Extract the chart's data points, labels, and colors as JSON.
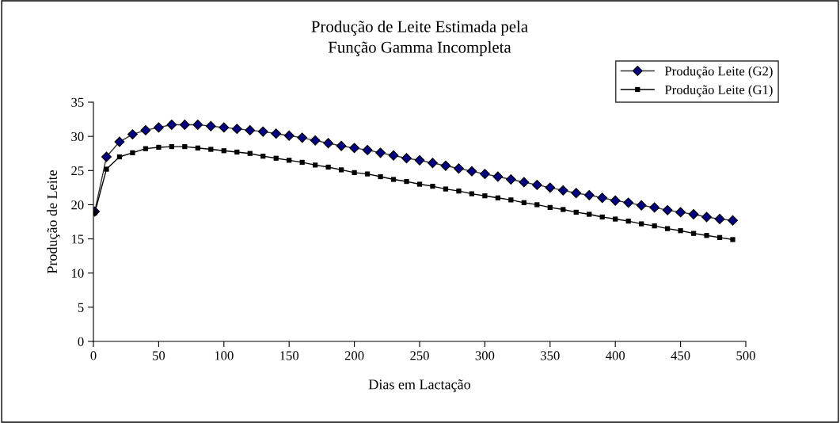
{
  "chart_data": {
    "type": "line",
    "title": "Produção de Leite Estimada pela\nFunção Gamma Incompleta",
    "xlabel": "Dias em Lactação",
    "ylabel": "Produção de Leite",
    "x": [
      1,
      10,
      20,
      30,
      40,
      50,
      60,
      70,
      80,
      90,
      100,
      110,
      120,
      130,
      140,
      150,
      160,
      170,
      180,
      190,
      200,
      210,
      220,
      230,
      240,
      250,
      260,
      270,
      280,
      290,
      300,
      310,
      320,
      330,
      340,
      350,
      360,
      370,
      380,
      390,
      400,
      410,
      420,
      430,
      440,
      450,
      460,
      470,
      480,
      490
    ],
    "series": [
      {
        "name": "Produção Leite (G2)",
        "color": "#000080",
        "marker": "diamond",
        "values": [
          19.0,
          27.0,
          29.2,
          30.3,
          30.9,
          31.3,
          31.7,
          31.7,
          31.7,
          31.5,
          31.3,
          31.1,
          30.9,
          30.7,
          30.4,
          30.1,
          29.8,
          29.4,
          29.0,
          28.6,
          28.3,
          28.0,
          27.6,
          27.2,
          26.8,
          26.5,
          26.1,
          25.7,
          25.3,
          24.9,
          24.5,
          24.1,
          23.7,
          23.3,
          22.9,
          22.5,
          22.1,
          21.7,
          21.4,
          21.0,
          20.6,
          20.3,
          19.9,
          19.6,
          19.2,
          18.9,
          18.6,
          18.2,
          17.9,
          17.7
        ]
      },
      {
        "name": "Produção Leite (G1)",
        "color": "#000000",
        "marker": "square",
        "values": [
          18.8,
          25.2,
          27.0,
          27.6,
          28.2,
          28.4,
          28.5,
          28.5,
          28.3,
          28.1,
          27.9,
          27.7,
          27.5,
          27.1,
          26.8,
          26.5,
          26.2,
          25.8,
          25.5,
          25.1,
          24.7,
          24.5,
          24.1,
          23.7,
          23.4,
          23.0,
          22.7,
          22.3,
          22.0,
          21.6,
          21.3,
          21.0,
          20.7,
          20.3,
          20.0,
          19.6,
          19.3,
          18.9,
          18.6,
          18.2,
          17.9,
          17.6,
          17.2,
          16.9,
          16.5,
          16.2,
          15.8,
          15.5,
          15.2,
          14.9
        ]
      }
    ],
    "xlim": [
      0,
      500
    ],
    "xticks": [
      0,
      50,
      100,
      150,
      200,
      250,
      300,
      350,
      400,
      450,
      500
    ],
    "ylim": [
      0,
      35
    ],
    "yticks": [
      0,
      5,
      10,
      15,
      20,
      25,
      30,
      35
    ],
    "grid": false,
    "legend": "top right",
    "line_style": "solid"
  }
}
